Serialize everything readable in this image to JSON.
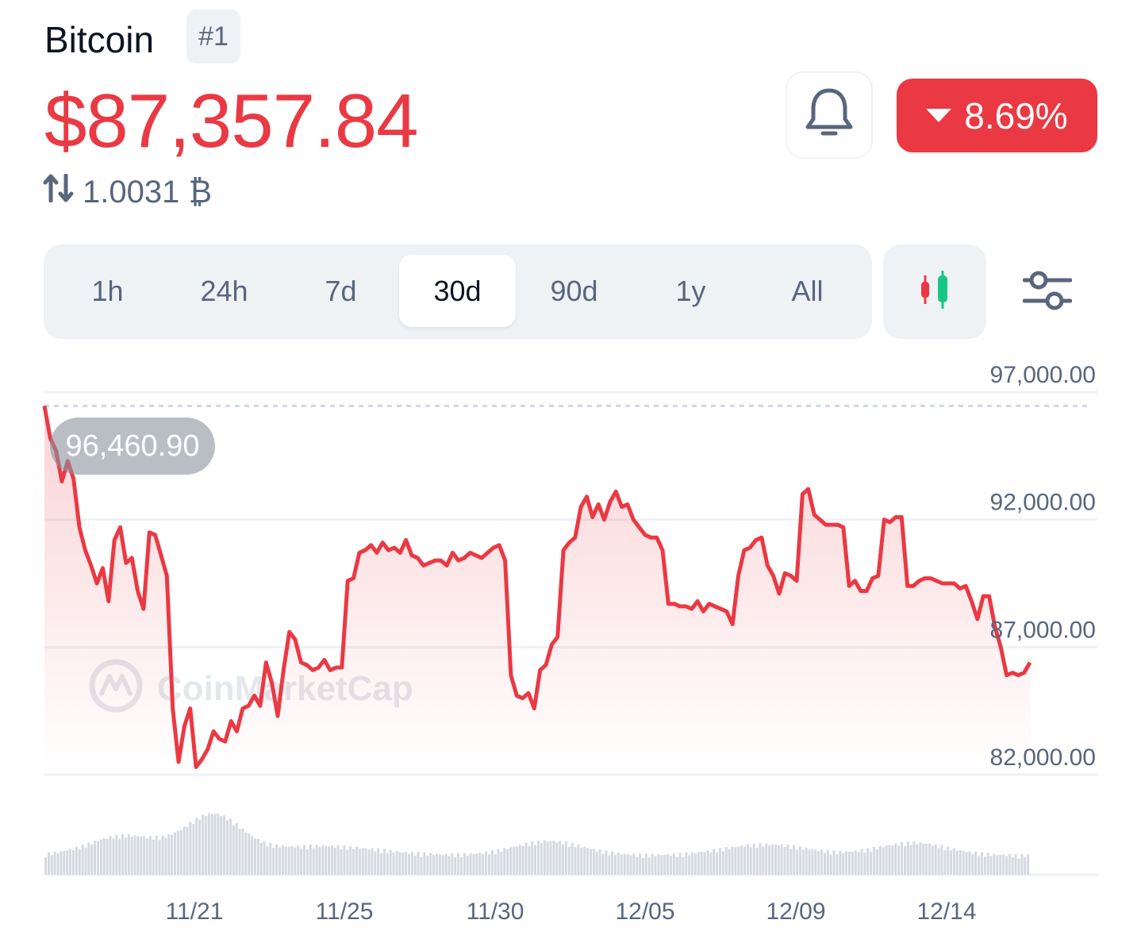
{
  "coin": {
    "name": "Bitcoin",
    "rank": "#1"
  },
  "price": {
    "usd": "$87,357.84",
    "btc": "1.0031 ₿"
  },
  "change": {
    "label": "8.69%",
    "direction": "down",
    "color": "#ea3943"
  },
  "icons": {
    "alert": "bell-icon",
    "swap": "swap-arrows-icon",
    "candles": "candlestick-icon",
    "settings": "sliders-icon"
  },
  "ranges": {
    "items": [
      "1h",
      "24h",
      "7d",
      "30d",
      "90d",
      "1y",
      "All"
    ],
    "active": "30d"
  },
  "chart_data": {
    "type": "line",
    "x_labels": [
      "11/21",
      "11/25",
      "11/30",
      "12/05",
      "12/09",
      "12/14"
    ],
    "y_ticks": [
      "97,000.00",
      "92,000.00",
      "87,000.00",
      "82,000.00"
    ],
    "ylim": [
      82000,
      97000
    ],
    "start_price_label": "96,460.90",
    "watermark": "CoinMarketCap",
    "line_color": "#ea3943",
    "series": [
      {
        "values": [
          96460,
          95200,
          94700,
          93500,
          94300,
          93600,
          91700,
          90800,
          90200,
          89500,
          90100,
          88800,
          91200,
          91700,
          90300,
          90500,
          89200,
          88500,
          91500,
          91400,
          90600,
          89800,
          84600,
          82500,
          83900,
          84600,
          82300,
          82600,
          83000,
          83700,
          83400,
          83300,
          84100,
          83700,
          84600,
          84700,
          85100,
          84700,
          86400,
          85600,
          84300,
          86100,
          87600,
          87300,
          86400,
          86300,
          86100,
          86200,
          86500,
          86100,
          86200,
          86200,
          89600,
          89700,
          90700,
          90800,
          91000,
          90700,
          91100,
          90800,
          90900,
          90700,
          91200,
          90600,
          90500,
          90200,
          90300,
          90400,
          90400,
          90200,
          90700,
          90400,
          90500,
          90700,
          90600,
          90500,
          90700,
          90900,
          91000,
          90400,
          85900,
          85100,
          85000,
          85200,
          84600,
          86100,
          86300,
          87100,
          87400,
          90800,
          91100,
          91300,
          92500,
          92900,
          92100,
          92600,
          92000,
          92700,
          93100,
          92500,
          92600,
          92000,
          91700,
          91400,
          91300,
          91300,
          90800,
          88700,
          88700,
          88600,
          88600,
          88500,
          88800,
          88400,
          88700,
          88600,
          88500,
          88400,
          87900,
          89800,
          90800,
          90900,
          91200,
          91300,
          90200,
          89800,
          89100,
          89900,
          89800,
          89600,
          93000,
          93200,
          92200,
          92000,
          91800,
          91800,
          91800,
          91700,
          89400,
          89600,
          89200,
          89200,
          89700,
          89800,
          92000,
          91900,
          92100,
          92100,
          89400,
          89400,
          89600,
          89700,
          89700,
          89600,
          89500,
          89500,
          89500,
          89300,
          89400,
          88800,
          88100,
          89000,
          89000,
          87800,
          87000,
          85900,
          86000,
          85900,
          86000,
          86400
        ]
      }
    ]
  }
}
